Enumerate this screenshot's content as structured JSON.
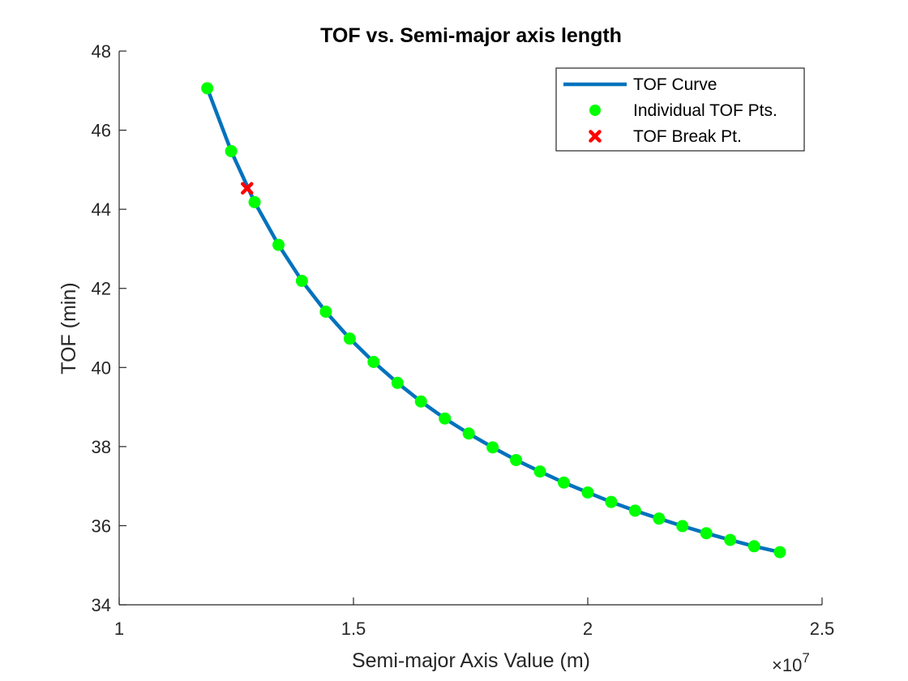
{
  "chart_data": {
    "type": "line",
    "title": "TOF vs. Semi-major axis length",
    "xlabel": "Semi-major Axis Value (m)",
    "ylabel": "TOF (min)",
    "x_exponent_label": {
      "base": "×10",
      "exp": "7"
    },
    "xlim": [
      1.0,
      2.5
    ],
    "ylim": [
      34,
      48
    ],
    "x_ticks": [
      1,
      1.5,
      2,
      2.5
    ],
    "x_tick_labels": [
      "1",
      "1.5",
      "2",
      "2.5"
    ],
    "y_ticks": [
      34,
      36,
      38,
      40,
      42,
      44,
      46,
      48
    ],
    "y_tick_labels": [
      "34",
      "36",
      "38",
      "40",
      "42",
      "44",
      "46",
      "48"
    ],
    "grid": false,
    "legend_position": "top-right",
    "series": [
      {
        "name": "TOF Curve",
        "style": "line",
        "color": "#0072BD",
        "x": [
          1.188,
          1.239,
          1.289,
          1.34,
          1.39,
          1.441,
          1.492,
          1.543,
          1.594,
          1.644,
          1.695,
          1.746,
          1.797,
          1.847,
          1.898,
          1.949,
          2.0,
          2.05,
          2.101,
          2.152,
          2.202,
          2.253,
          2.304,
          2.355,
          2.41
        ],
        "y": [
          47.06,
          45.47,
          44.18,
          43.1,
          42.19,
          41.41,
          40.73,
          40.14,
          39.61,
          39.14,
          38.71,
          38.33,
          37.98,
          37.66,
          37.37,
          37.09,
          36.84,
          36.6,
          36.38,
          36.18,
          35.99,
          35.81,
          35.64,
          35.48,
          35.33
        ]
      },
      {
        "name": "Individual TOF Pts.",
        "style": "marker-circle",
        "color": "#00FF00",
        "x": [
          1.188,
          1.239,
          1.289,
          1.34,
          1.39,
          1.441,
          1.492,
          1.543,
          1.594,
          1.644,
          1.695,
          1.746,
          1.797,
          1.847,
          1.898,
          1.949,
          2.0,
          2.05,
          2.101,
          2.152,
          2.202,
          2.253,
          2.304,
          2.355,
          2.41
        ],
        "y": [
          47.06,
          45.47,
          44.18,
          43.1,
          42.19,
          41.41,
          40.73,
          40.14,
          39.61,
          39.14,
          38.71,
          38.33,
          37.98,
          37.66,
          37.37,
          37.09,
          36.84,
          36.6,
          36.38,
          36.18,
          35.99,
          35.81,
          35.64,
          35.48,
          35.33
        ]
      },
      {
        "name": "TOF Break Pt.",
        "style": "marker-x",
        "color": "#FF0000",
        "x": [
          1.273
        ],
        "y": [
          44.53
        ]
      }
    ]
  }
}
